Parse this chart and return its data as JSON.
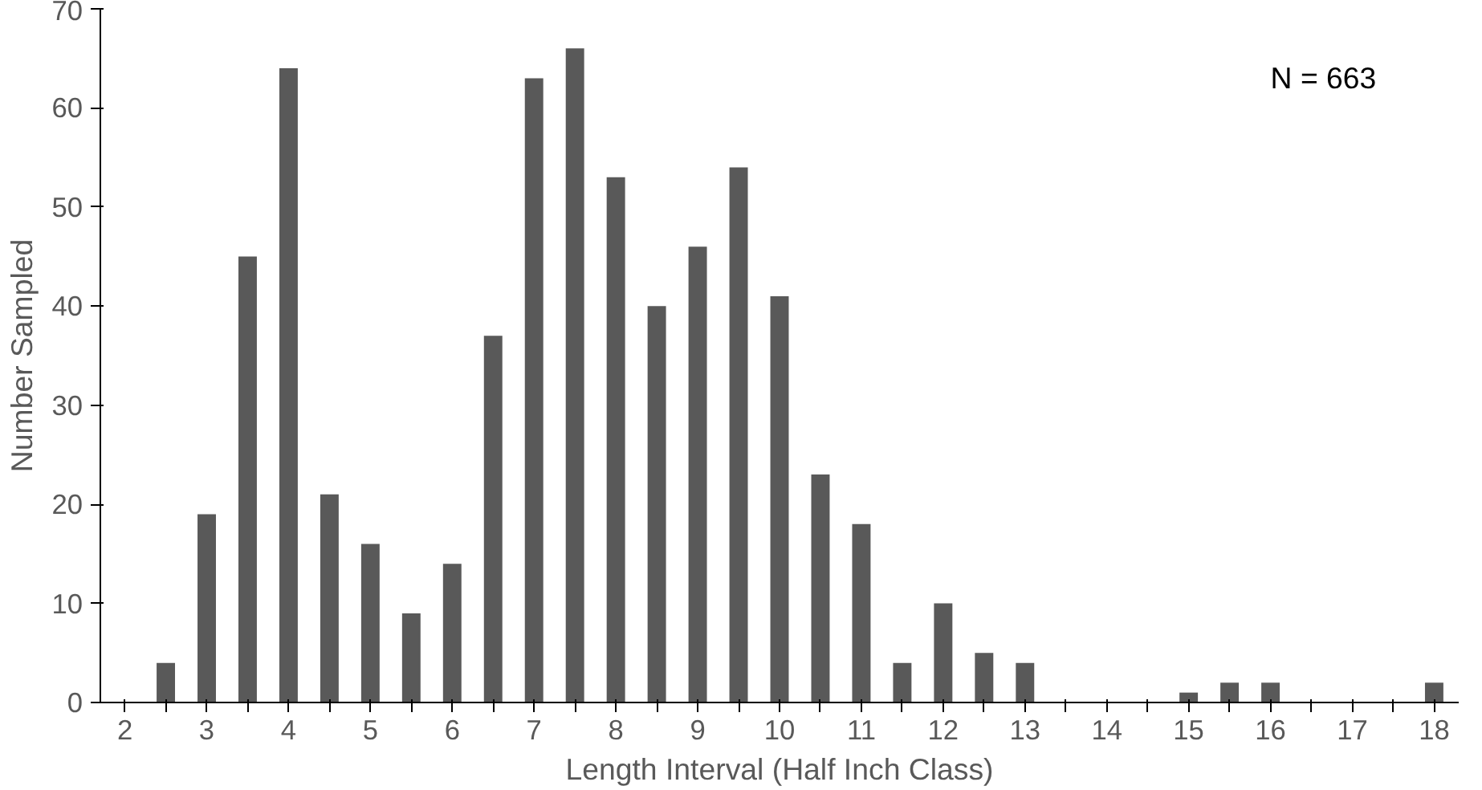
{
  "chart_data": {
    "type": "bar",
    "xlabel": "Length Interval (Half Inch Class)",
    "ylabel": "Number Sampled",
    "categories": [
      "2",
      null,
      "3",
      null,
      "4",
      null,
      "5",
      null,
      "6",
      null,
      "7",
      null,
      "8",
      null,
      "9",
      null,
      "10",
      null,
      "11",
      null,
      "12",
      null,
      "13",
      null,
      "14",
      null,
      "15",
      null,
      "16",
      null,
      "17",
      null,
      "18"
    ],
    "values": [
      0,
      4,
      19,
      45,
      64,
      21,
      16,
      9,
      14,
      37,
      63,
      66,
      53,
      40,
      46,
      54,
      41,
      23,
      18,
      4,
      10,
      5,
      4,
      0,
      0,
      0,
      1,
      2,
      2,
      0,
      0,
      0,
      2
    ],
    "color": "#595959",
    "ylim": [
      0,
      70
    ],
    "yticks": [
      0,
      10,
      20,
      30,
      40,
      50,
      60,
      70
    ],
    "grid": false,
    "annotations": [
      "N = 663"
    ]
  }
}
